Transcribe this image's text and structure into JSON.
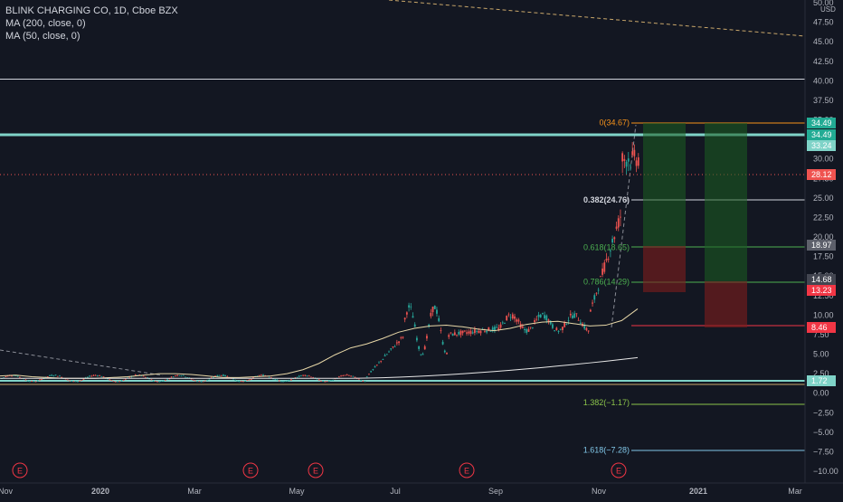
{
  "symbol": {
    "title": "BLINK CHARGING CO, 1D, Cboe BZX",
    "ma200": "MA (200, close, 0)",
    "ma50": "MA (50, close, 0)"
  },
  "chart_data": {
    "type": "candlestick",
    "currency": "USD",
    "ylim": [
      -11,
      51
    ],
    "y_ticks": [
      "50.00",
      "47.50",
      "45.00",
      "42.50",
      "40.00",
      "37.50",
      "35.00",
      "32.50",
      "30.00",
      "27.50",
      "25.00",
      "22.50",
      "20.00",
      "17.50",
      "15.00",
      "12.50",
      "10.00",
      "7.50",
      "5.00",
      "2.50",
      "0.00",
      "−2.50",
      "−5.00",
      "−7.50",
      "−10.00"
    ],
    "x_ticks": [
      "Nov",
      "2020",
      "Mar",
      "May",
      "Jul",
      "Sep",
      "Nov",
      "2021",
      "Mar"
    ],
    "price_labels": [
      {
        "text": "34.49",
        "value": 34.49,
        "color": "#22ab94"
      },
      {
        "text": "34.49",
        "value": 34.49,
        "color": "#22ab94"
      },
      {
        "text": "33.24",
        "value": 33.24,
        "color": "#7fd3c8"
      },
      {
        "text": "28.12",
        "value": 28.12,
        "color": "#ef5350"
      },
      {
        "text": "18.97",
        "value": 18.97,
        "color": "#5d606b"
      },
      {
        "text": "14.68",
        "value": 14.68,
        "color": "#434651"
      },
      {
        "text": "13.23",
        "value": 13.23,
        "color": "#f23645"
      },
      {
        "text": "8.46",
        "value": 8.46,
        "color": "#f23645"
      },
      {
        "text": "1.72",
        "value": 1.72,
        "color": "#7fd3c8"
      }
    ],
    "fib_levels": [
      {
        "label": "0(34.67)",
        "value": 34.67,
        "color": "#f7931a"
      },
      {
        "label": "0.382(24.76)",
        "value": 24.76,
        "color": "#d1d4dc"
      },
      {
        "label": "0.618(18.65)",
        "value": 18.65,
        "color": "#4caf50"
      },
      {
        "label": "0.786(14.29)",
        "value": 14.29,
        "color": "#4caf50"
      },
      {
        "label": "1.382(−1.17)",
        "value": -1.17,
        "color": "#8bc34a"
      },
      {
        "label": "1.618(−7.28)",
        "value": -7.28,
        "color": "#81c7e8"
      }
    ],
    "horizontal_lines": [
      40.2,
      33.24,
      1.72,
      1.3
    ],
    "earnings_markers": [
      "E",
      "E",
      "E",
      "E",
      "E"
    ],
    "ma50": [
      [
        2.2,
        1.1
      ],
      [
        2.3,
        1.2
      ],
      [
        2.1,
        1.3
      ],
      [
        2.0,
        1.4
      ],
      [
        1.9,
        1.5
      ],
      [
        1.9,
        1.6
      ],
      [
        1.9,
        1.7
      ],
      [
        2.0,
        1.8
      ],
      [
        2.1,
        1.9
      ],
      [
        2.3,
        2.0
      ],
      [
        2.5,
        2.1
      ],
      [
        2.5,
        2.2
      ],
      [
        2.4,
        2.3
      ],
      [
        2.2,
        2.4
      ],
      [
        2.0,
        2.5
      ],
      [
        2.0,
        2.6
      ],
      [
        2.1,
        2.7
      ],
      [
        2.2,
        2.8
      ],
      [
        2.5,
        2.9
      ],
      [
        3.0,
        3.0
      ],
      [
        3.8,
        3.1
      ],
      [
        4.9,
        3.2
      ],
      [
        5.8,
        3.3
      ],
      [
        6.3,
        3.4
      ],
      [
        7.0,
        3.5
      ],
      [
        7.8,
        3.6
      ],
      [
        8.3,
        3.7
      ],
      [
        8.6,
        3.8
      ],
      [
        8.7,
        3.9
      ],
      [
        8.5,
        4.0
      ],
      [
        8.2,
        4.1
      ],
      [
        8.0,
        4.2
      ],
      [
        8.3,
        4.3
      ],
      [
        8.8,
        4.4
      ],
      [
        9.1,
        4.5
      ],
      [
        9.2,
        4.6
      ],
      [
        8.9,
        4.7
      ],
      [
        8.6,
        4.8
      ],
      [
        8.7,
        4.9
      ],
      [
        9.3,
        5.0
      ],
      [
        10.8,
        5.1
      ]
    ]
  }
}
